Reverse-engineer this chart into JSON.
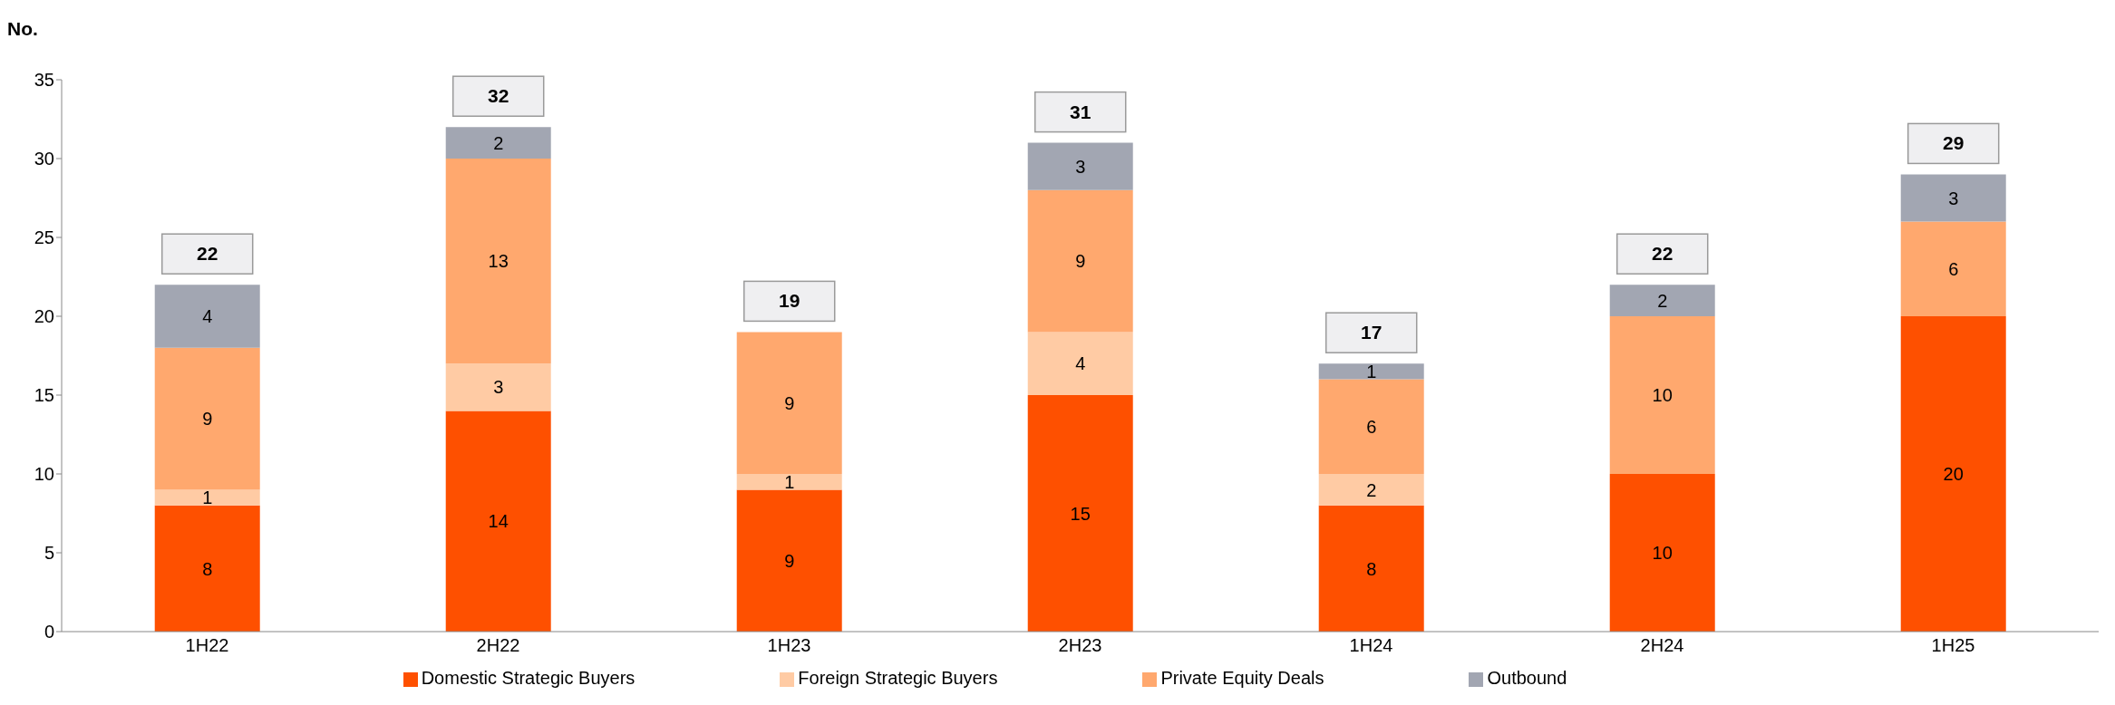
{
  "chart_data": {
    "type": "bar",
    "ylabel": "No.",
    "categories": [
      "1H22",
      "2H22",
      "1H23",
      "2H23",
      "1H24",
      "2H24",
      "1H25"
    ],
    "series": [
      {
        "name": "Domestic Strategic Buyers",
        "color": "#fe5000",
        "values": [
          8,
          14,
          9,
          15,
          8,
          10,
          20
        ]
      },
      {
        "name": "Foreign Strategic Buyers",
        "color": "#ffcba4",
        "values": [
          1,
          3,
          1,
          4,
          2,
          null,
          null
        ]
      },
      {
        "name": "Private Equity Deals",
        "color": "#ffa86e",
        "values": [
          9,
          13,
          9,
          9,
          6,
          10,
          6
        ]
      },
      {
        "name": "Outbound",
        "color": "#a2a6b2",
        "values": [
          4,
          2,
          null,
          3,
          1,
          2,
          3
        ]
      }
    ],
    "stacked": true,
    "ylim": [
      0,
      35
    ],
    "yticks": [
      0,
      5,
      10,
      15,
      20,
      25,
      30,
      35
    ],
    "grid": false,
    "legend": "bottom",
    "data_labels": true,
    "totals": [
      "22",
      "32",
      "19",
      "31",
      "17",
      "22",
      "29"
    ]
  }
}
